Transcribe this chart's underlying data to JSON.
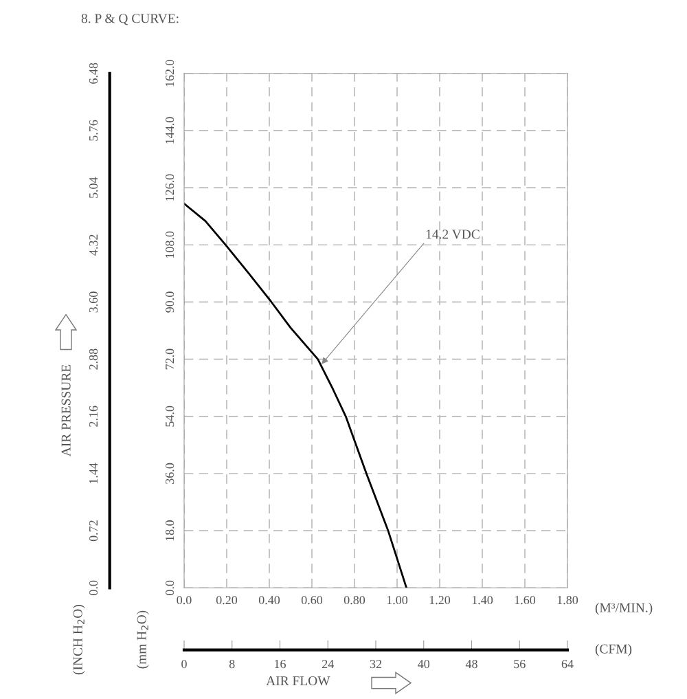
{
  "chart_data": {
    "type": "line",
    "title": "8. P & Q CURVE:",
    "xlabel": "AIR FLOW",
    "y2label": "AIR PRESSURE",
    "x": [
      0,
      0.1,
      0.195,
      0.3,
      0.41,
      0.5,
      0.628,
      0.7,
      0.759,
      0.856,
      0.958,
      1.044
    ],
    "series": [
      {
        "color": "#000000",
        "values": [
          121,
          115.5,
          108,
          99.3,
          90,
          81.9,
          72,
          62.4,
          54,
          36,
          18,
          0
        ]
      }
    ],
    "xlim": [
      0,
      1.8
    ],
    "xticks": [
      {
        "value": 0,
        "label": "0.0"
      },
      {
        "value": 0.2,
        "label": "0.20"
      },
      {
        "value": 0.4,
        "label": "0.40"
      },
      {
        "value": 0.6,
        "label": "0.60"
      },
      {
        "value": 0.8,
        "label": "0.80"
      },
      {
        "value": 1.0,
        "label": "1.00"
      },
      {
        "value": 1.2,
        "label": "1.20"
      },
      {
        "value": 1.4,
        "label": "1.40"
      },
      {
        "value": 1.6,
        "label": "1.60"
      },
      {
        "value": 1.8,
        "label": "1.80"
      }
    ],
    "ylim": [
      0,
      162
    ],
    "yticks": [
      {
        "value": 0,
        "label": "0.0"
      },
      {
        "value": 18,
        "label": "18.0"
      },
      {
        "value": 36,
        "label": "36.0"
      },
      {
        "value": 54,
        "label": "54.0"
      },
      {
        "value": 72,
        "label": "72.0"
      },
      {
        "value": 90,
        "label": "90.0"
      },
      {
        "value": 108,
        "label": "108.0"
      },
      {
        "value": 126,
        "label": "126.0"
      },
      {
        "value": 144,
        "label": "144.0"
      },
      {
        "value": 162,
        "label": "162.0"
      }
    ],
    "y2lim": [
      0,
      6.48
    ],
    "y2ticks": [
      {
        "value": 0,
        "label": "0.0"
      },
      0.72,
      1.44,
      2.16,
      2.88,
      {
        "value": 3.6,
        "label": "3.60"
      },
      4.32,
      5.04,
      5.76,
      6.48
    ],
    "x2lim": [
      0,
      64
    ],
    "x2ticks": [
      0,
      8,
      16,
      24,
      32,
      40,
      48,
      56,
      64
    ],
    "annotations": [
      {
        "text": "14.2 VDC",
        "x": 0.64,
        "y": 70
      },
      "(M³/MIN.)",
      "(CFM)",
      "(mm H$_{2}$O)",
      "(INCH H$_{2}$O)"
    ],
    "grid": true,
    "marker": "none",
    "line_style": "solid",
    "legend": false
  }
}
